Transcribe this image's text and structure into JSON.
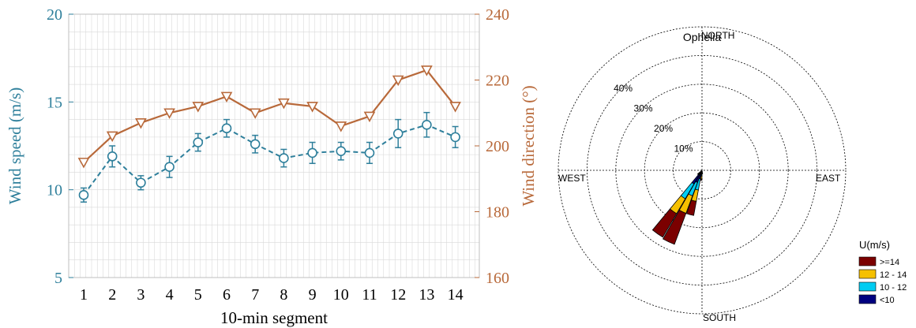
{
  "chart_data": [
    {
      "type": "line",
      "title": "",
      "xlabel": "10-min segment",
      "ylabel": "Wind speed (m/s)",
      "y2label": "Wind direction (°)",
      "categories": [
        "1",
        "2",
        "3",
        "4",
        "5",
        "6",
        "7",
        "8",
        "9",
        "10",
        "11",
        "12",
        "13",
        "14"
      ],
      "ylim": [
        5,
        20
      ],
      "y2lim": [
        160,
        240
      ],
      "yticks": [
        "5",
        "10",
        "15",
        "20"
      ],
      "y2ticks": [
        "160",
        "180",
        "200",
        "220",
        "240"
      ],
      "grid": true,
      "colors": {
        "speed": "#2e7f9b",
        "direction": "#b8693a",
        "grid": "#d9d9d9"
      },
      "series": [
        {
          "axis": "left",
          "style": "dashed, circle markers, error bars",
          "values": [
            9.7,
            11.9,
            10.4,
            11.3,
            12.7,
            13.5,
            12.6,
            11.8,
            12.1,
            12.2,
            12.1,
            13.2,
            13.7,
            13.0
          ],
          "error": [
            0.4,
            0.6,
            0.4,
            0.6,
            0.5,
            0.5,
            0.5,
            0.5,
            0.6,
            0.5,
            0.6,
            0.8,
            0.7,
            0.6
          ]
        },
        {
          "axis": "right",
          "style": "solid, inverted triangle markers",
          "values": [
            195,
            203,
            207,
            210,
            212,
            215,
            210,
            213,
            212,
            206,
            209,
            220,
            223,
            212
          ]
        }
      ]
    },
    {
      "type": "wind-rose",
      "title": "Ophelia",
      "directions": [
        "NORTH",
        "EAST",
        "SOUTH",
        "WEST"
      ],
      "ring_labels": [
        "10%",
        "20%",
        "30%",
        "40%"
      ],
      "ring_max_percent": 50,
      "legend": {
        "title": "U(m/s)",
        "entries": [
          {
            "label": ">=14",
            "color": "#7b0000"
          },
          {
            "label": "12 - 14",
            "color": "#f5c000"
          },
          {
            "label": "10 - 12",
            "color": "#00ccf2"
          },
          {
            "label": "<10",
            "color": "#000080"
          }
        ]
      },
      "sectors": [
        {
          "direction_deg": 215,
          "cumulative_percent": [
            5.5,
            11.5,
            17.5,
            27.0
          ]
        },
        {
          "direction_deg": 205,
          "cumulative_percent": [
            4.5,
            9.5,
            16.0,
            27.5
          ]
        },
        {
          "direction_deg": 195,
          "cumulative_percent": [
            3.0,
            7.0,
            11.0,
            16.0
          ]
        },
        {
          "direction_deg": 185,
          "cumulative_percent": [
            1.0,
            2.0,
            3.0,
            3.5
          ]
        },
        {
          "direction_deg": 175,
          "cumulative_percent": [
            0.4,
            0.7,
            1.0,
            1.3
          ]
        },
        {
          "direction_deg": 225,
          "cumulative_percent": [
            1.0,
            1.5,
            1.8,
            2.0
          ]
        }
      ]
    }
  ]
}
